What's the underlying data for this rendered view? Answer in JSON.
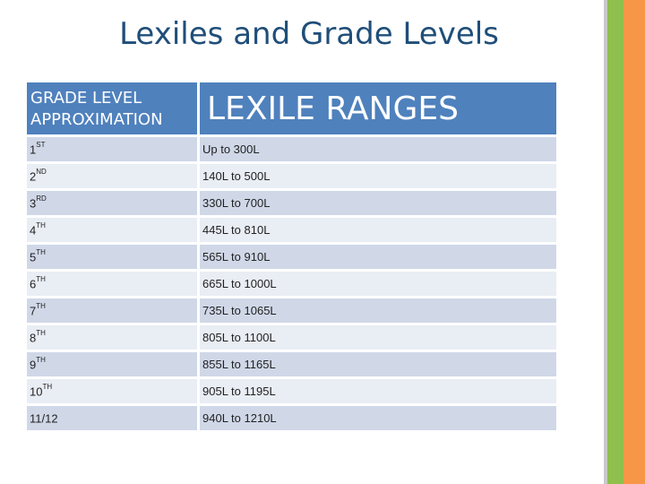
{
  "title": "Lexiles and Grade Levels",
  "colors": {
    "title": "#1f4e79",
    "header_bg": "#4f81bd",
    "row_dark": "#d0d8e8",
    "row_light": "#e9edf4",
    "stripe_gray": "#c9c9c9",
    "stripe_green": "#8fbf4d",
    "stripe_orange": "#f79646"
  },
  "table": {
    "header_grade_line1": "GRADE LEVEL",
    "header_grade_line2": "APPROXIMATION",
    "header_range": "LEXILE RANGES",
    "rows": [
      {
        "grade": "1",
        "suffix": "ST",
        "range": "Up to 300L"
      },
      {
        "grade": "2",
        "suffix": "ND",
        "range": "140L to 500L"
      },
      {
        "grade": "3",
        "suffix": "RD",
        "range": "330L to 700L"
      },
      {
        "grade": "4",
        "suffix": "TH",
        "range": "445L to 810L"
      },
      {
        "grade": "5",
        "suffix": "TH",
        "range": "565L to 910L"
      },
      {
        "grade": "6",
        "suffix": "TH",
        "range": "665L to 1000L"
      },
      {
        "grade": "7",
        "suffix": "TH",
        "range": "735L to 1065L"
      },
      {
        "grade": "8",
        "suffix": "TH",
        "range": "805L to 1100L"
      },
      {
        "grade": "9",
        "suffix": "TH",
        "range": "855L to 1165L"
      },
      {
        "grade": "10",
        "suffix": "TH",
        "range": "905L to 1195L"
      },
      {
        "grade": "11/12",
        "suffix": "",
        "range": "940L to 1210L"
      }
    ]
  }
}
